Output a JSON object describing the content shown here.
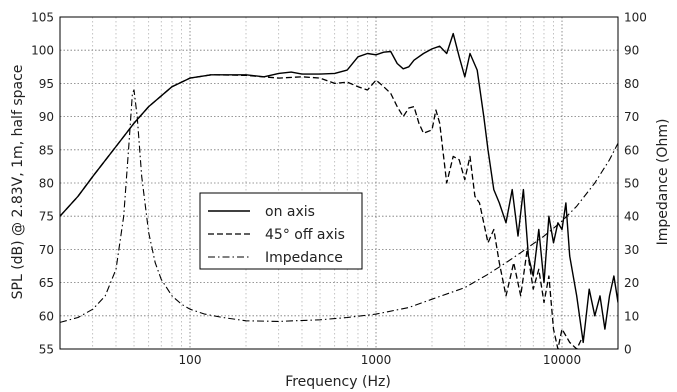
{
  "chart_data": {
    "type": "line",
    "title": "",
    "xlabel": "Frequency (Hz)",
    "ylabel": "SPL (dB) @ 2.83V, 1m, half space",
    "y2label": "Impedance (Ohm)",
    "xscale": "log",
    "xlim": [
      20,
      20000
    ],
    "ylim": [
      55,
      105
    ],
    "y2lim": [
      0,
      100
    ],
    "grid": true,
    "legend_position": "center-left",
    "x_tick_labels": [
      "100",
      "1000",
      "10000"
    ],
    "x_tick_values": [
      100,
      1000,
      10000
    ],
    "y_tick_values": [
      55,
      60,
      65,
      70,
      75,
      80,
      85,
      90,
      95,
      100,
      105
    ],
    "y2_tick_values": [
      0,
      10,
      20,
      30,
      40,
      50,
      60,
      70,
      80,
      90,
      100
    ],
    "series": [
      {
        "name": "on axis",
        "axis": "left",
        "style": "solid",
        "points": [
          [
            20,
            75
          ],
          [
            25,
            78
          ],
          [
            30,
            81
          ],
          [
            40,
            85.5
          ],
          [
            50,
            89
          ],
          [
            60,
            91.5
          ],
          [
            80,
            94.5
          ],
          [
            100,
            95.8
          ],
          [
            130,
            96.3
          ],
          [
            200,
            96.3
          ],
          [
            250,
            96
          ],
          [
            300,
            96.5
          ],
          [
            350,
            96.7
          ],
          [
            400,
            96.4
          ],
          [
            500,
            96.4
          ],
          [
            600,
            96.5
          ],
          [
            700,
            97
          ],
          [
            800,
            99
          ],
          [
            900,
            99.5
          ],
          [
            1000,
            99.3
          ],
          [
            1100,
            99.7
          ],
          [
            1200,
            99.8
          ],
          [
            1300,
            98
          ],
          [
            1400,
            97.2
          ],
          [
            1500,
            97.5
          ],
          [
            1600,
            98.5
          ],
          [
            1800,
            99.5
          ],
          [
            2000,
            100.2
          ],
          [
            2200,
            100.6
          ],
          [
            2400,
            99.5
          ],
          [
            2600,
            102.5
          ],
          [
            2800,
            99
          ],
          [
            3000,
            96
          ],
          [
            3200,
            99.5
          ],
          [
            3500,
            97
          ],
          [
            3800,
            90
          ],
          [
            4000,
            85
          ],
          [
            4300,
            79
          ],
          [
            4600,
            77
          ],
          [
            5000,
            74
          ],
          [
            5400,
            79
          ],
          [
            5800,
            72
          ],
          [
            6200,
            79
          ],
          [
            6600,
            69
          ],
          [
            7000,
            66
          ],
          [
            7500,
            73
          ],
          [
            8000,
            65
          ],
          [
            8500,
            75
          ],
          [
            9000,
            71
          ],
          [
            9500,
            74
          ],
          [
            10000,
            73
          ],
          [
            10500,
            77
          ],
          [
            11000,
            69
          ],
          [
            12000,
            63
          ],
          [
            13000,
            56
          ],
          [
            14000,
            64
          ],
          [
            15000,
            60
          ],
          [
            16000,
            63
          ],
          [
            17000,
            58
          ],
          [
            18000,
            63
          ],
          [
            19000,
            66
          ],
          [
            20000,
            62
          ]
        ]
      },
      {
        "name": "45° off axis",
        "axis": "left",
        "style": "dashed",
        "points": [
          [
            20,
            75
          ],
          [
            25,
            78
          ],
          [
            30,
            81
          ],
          [
            40,
            85.5
          ],
          [
            50,
            89
          ],
          [
            60,
            91.5
          ],
          [
            80,
            94.5
          ],
          [
            100,
            95.8
          ],
          [
            130,
            96.3
          ],
          [
            200,
            96.2
          ],
          [
            300,
            95.8
          ],
          [
            400,
            96
          ],
          [
            500,
            95.8
          ],
          [
            600,
            95
          ],
          [
            700,
            95.2
          ],
          [
            800,
            94.5
          ],
          [
            900,
            94
          ],
          [
            1000,
            95.5
          ],
          [
            1100,
            94.5
          ],
          [
            1200,
            93.5
          ],
          [
            1300,
            91.5
          ],
          [
            1400,
            90
          ],
          [
            1500,
            91.3
          ],
          [
            1600,
            91.5
          ],
          [
            1700,
            89
          ],
          [
            1800,
            87.5
          ],
          [
            2000,
            88
          ],
          [
            2100,
            91
          ],
          [
            2200,
            89
          ],
          [
            2400,
            80
          ],
          [
            2600,
            84
          ],
          [
            2800,
            83.5
          ],
          [
            3000,
            80.5
          ],
          [
            3200,
            84
          ],
          [
            3400,
            78
          ],
          [
            3600,
            77
          ],
          [
            4000,
            71
          ],
          [
            4300,
            73
          ],
          [
            4600,
            68
          ],
          [
            5000,
            63
          ],
          [
            5500,
            68
          ],
          [
            6000,
            63
          ],
          [
            6500,
            70
          ],
          [
            7000,
            64
          ],
          [
            7500,
            67
          ],
          [
            8000,
            62
          ],
          [
            8500,
            66
          ],
          [
            9000,
            58
          ],
          [
            9500,
            55
          ],
          [
            10000,
            58
          ],
          [
            11000,
            56
          ],
          [
            12000,
            55
          ],
          [
            13000,
            57
          ]
        ]
      },
      {
        "name": "Impedance",
        "axis": "right",
        "style": "dashdot",
        "points": [
          [
            20,
            8
          ],
          [
            25,
            9.5
          ],
          [
            30,
            12
          ],
          [
            35,
            16
          ],
          [
            40,
            24
          ],
          [
            44,
            40
          ],
          [
            47,
            62
          ],
          [
            49,
            77
          ],
          [
            50,
            78
          ],
          [
            52,
            70
          ],
          [
            55,
            52
          ],
          [
            60,
            35
          ],
          [
            65,
            26
          ],
          [
            70,
            21
          ],
          [
            80,
            16
          ],
          [
            90,
            13.5
          ],
          [
            100,
            12
          ],
          [
            120,
            10.5
          ],
          [
            150,
            9.5
          ],
          [
            200,
            8.5
          ],
          [
            300,
            8.3
          ],
          [
            500,
            8.8
          ],
          [
            700,
            9.5
          ],
          [
            1000,
            10.5
          ],
          [
            1500,
            12.5
          ],
          [
            2000,
            15
          ],
          [
            3000,
            18.5
          ],
          [
            4000,
            22.5
          ],
          [
            5000,
            26
          ],
          [
            6000,
            29
          ],
          [
            8000,
            34
          ],
          [
            10000,
            38.5
          ],
          [
            12000,
            43
          ],
          [
            15000,
            50
          ],
          [
            18000,
            57
          ],
          [
            20000,
            62
          ]
        ]
      }
    ]
  }
}
